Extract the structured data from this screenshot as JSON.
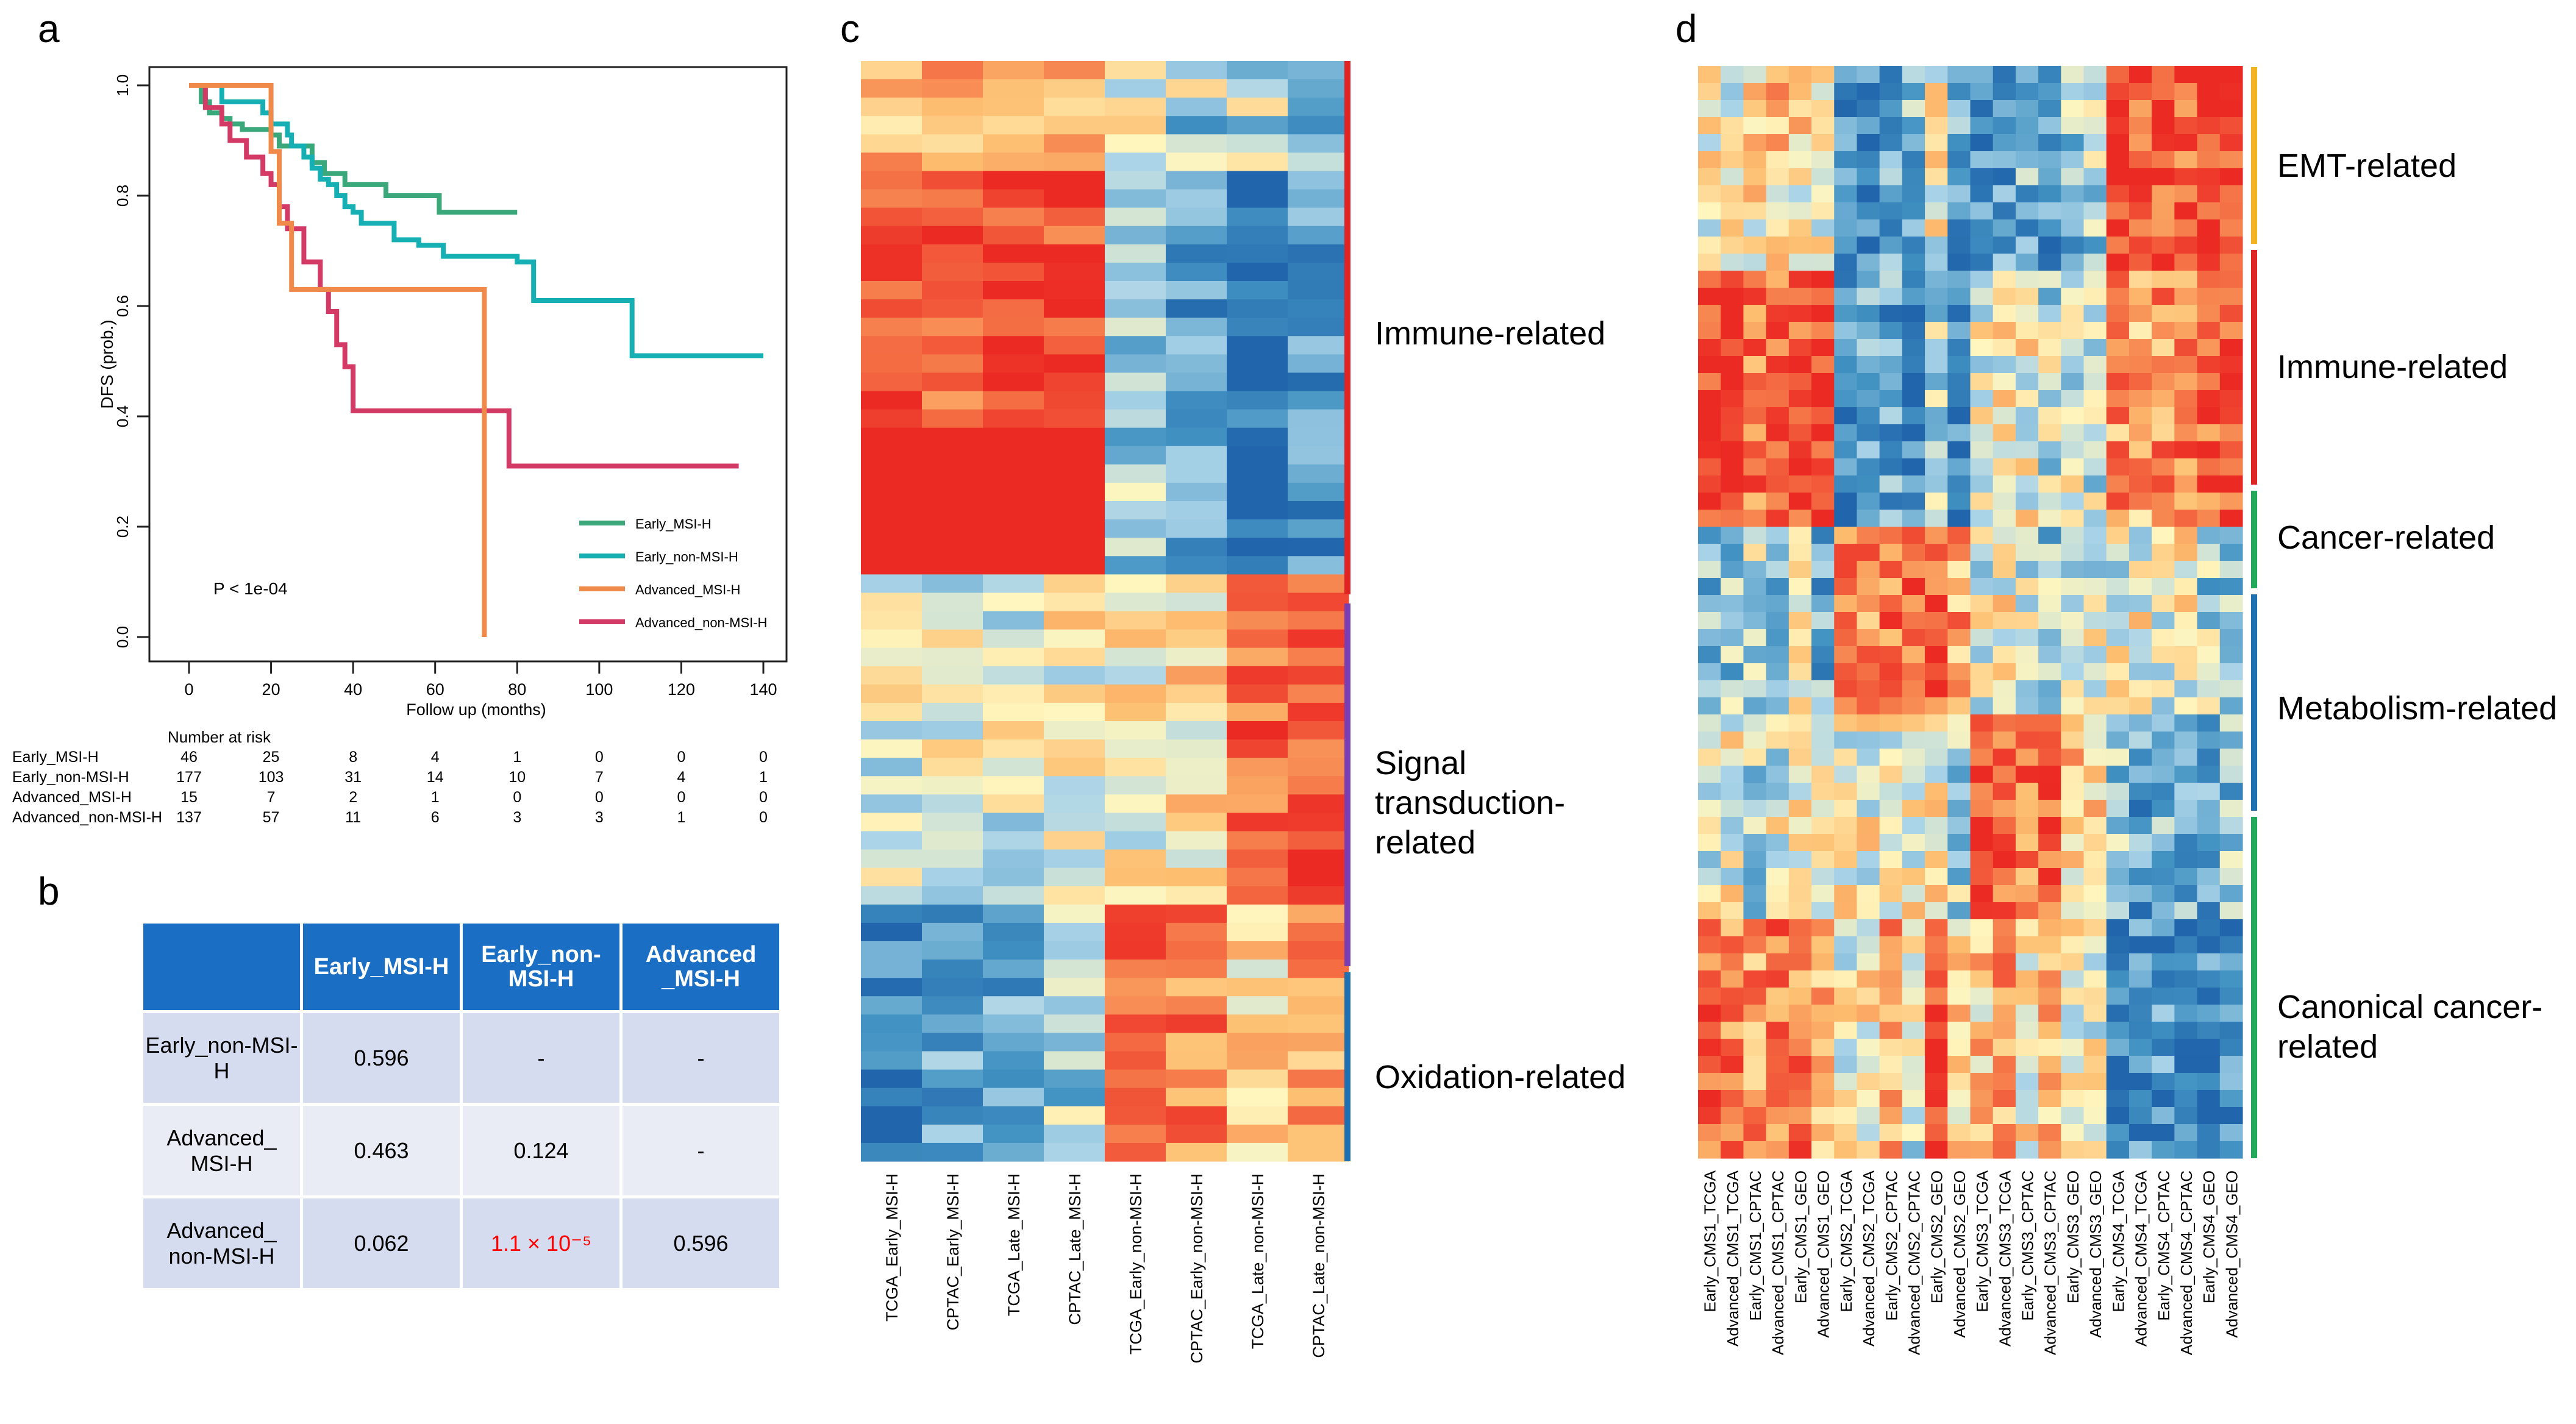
{
  "panels": {
    "a": "a",
    "b": "b",
    "c": "c",
    "d": "d"
  },
  "km": {
    "ylabel": "DFS (prob.)",
    "xlabel": "Follow up (months)",
    "yticks": [
      "0.0",
      "0.2",
      "0.4",
      "0.6",
      "0.8",
      "1.0"
    ],
    "xticks": [
      "0",
      "20",
      "40",
      "60",
      "80",
      "100",
      "120",
      "140"
    ],
    "pvalue": "P < 1e-04",
    "colors": {
      "early_msi": "#3aa87a",
      "early_non": "#16b0b4",
      "adv_msi": "#f08a4b",
      "adv_non": "#d43a66"
    },
    "legend": [
      "Early_MSI-H",
      "Early_non-MSI-H",
      "Advanced_MSI-H",
      "Advanced_non-MSI-H"
    ],
    "risk_title": "Number at risk",
    "risk_rows": [
      {
        "label": "Early_MSI-H",
        "values": [
          "46",
          "25",
          "8",
          "4",
          "1",
          "0",
          "0",
          "0"
        ]
      },
      {
        "label": "Early_non-MSI-H",
        "values": [
          "177",
          "103",
          "31",
          "14",
          "10",
          "7",
          "4",
          "1"
        ]
      },
      {
        "label": "Advanced_MSI-H",
        "values": [
          "15",
          "7",
          "2",
          "1",
          "0",
          "0",
          "0",
          "0"
        ]
      },
      {
        "label": "Advanced_non-MSI-H",
        "values": [
          "137",
          "57",
          "11",
          "6",
          "3",
          "3",
          "1",
          "0"
        ]
      }
    ]
  },
  "chart_data": [
    {
      "type": "line",
      "title": "",
      "xlabel": "Follow up (months)",
      "ylabel": "DFS (prob.)",
      "xlim": [
        0,
        140
      ],
      "ylim": [
        0,
        1
      ],
      "series": [
        {
          "name": "Early_MSI-H",
          "x": [
            0,
            3,
            5,
            8,
            10,
            13,
            20,
            22,
            30,
            33,
            38,
            48,
            60,
            61,
            80
          ],
          "y": [
            1.0,
            0.97,
            0.95,
            0.94,
            0.93,
            0.92,
            0.91,
            0.89,
            0.86,
            0.84,
            0.82,
            0.8,
            0.8,
            0.77,
            0.77
          ]
        },
        {
          "name": "Early_non-MSI-H",
          "x": [
            0,
            8,
            18,
            20,
            24,
            25,
            28,
            30,
            32,
            34,
            36,
            38,
            40,
            42,
            50,
            56,
            62,
            80,
            84,
            108,
            140
          ],
          "y": [
            1.0,
            0.97,
            0.95,
            0.93,
            0.91,
            0.89,
            0.87,
            0.85,
            0.83,
            0.82,
            0.8,
            0.78,
            0.77,
            0.75,
            0.72,
            0.71,
            0.69,
            0.68,
            0.61,
            0.51,
            0.51
          ]
        },
        {
          "name": "Advanced_MSI-H",
          "x": [
            0,
            20,
            22,
            25,
            72,
            72
          ],
          "y": [
            1.0,
            0.88,
            0.75,
            0.63,
            0.63,
            0.0
          ]
        },
        {
          "name": "Advanced_non-MSI-H",
          "x": [
            0,
            4,
            8,
            10,
            14,
            18,
            20,
            22,
            24,
            28,
            32,
            34,
            36,
            38,
            40,
            56,
            78,
            134
          ],
          "y": [
            1.0,
            0.96,
            0.93,
            0.9,
            0.87,
            0.84,
            0.82,
            0.78,
            0.74,
            0.68,
            0.63,
            0.59,
            0.53,
            0.49,
            0.41,
            0.41,
            0.31,
            0.31
          ]
        }
      ]
    },
    {
      "type": "table",
      "columns": [
        "",
        "Early_MSI-H",
        "Early_non-MSI-H",
        "Advanced_MSI-H"
      ],
      "rows": [
        [
          "Early_non-MSI-H",
          "0.596",
          "-",
          "-"
        ],
        [
          "Advanced_MSI-H",
          "0.463",
          "0.124",
          "-"
        ],
        [
          "Advanced_non-MSI-H",
          "0.062",
          "1.1 × 10⁻⁵",
          "0.596"
        ]
      ]
    },
    {
      "type": "heatmap",
      "columns": [
        "TCGA_Early_MSI-H",
        "CPTAC_Early_MSI-H",
        "TCGA_Late_MSI-H",
        "CPTAC_Late_MSI-H",
        "TCGA_Early_non-MSI-H",
        "CPTAC_Early_non-MSI-H",
        "TCGA_Late_non-MSI-H",
        "CPTAC_Late_non-MSI-H"
      ],
      "groups": [
        "Immune-related",
        "Signal transduction-related",
        "Oxidation-related"
      ]
    },
    {
      "type": "heatmap",
      "columns": [
        "Early_CMS1_TCGA",
        "Advanced_CMS1_TCGA",
        "Early_CMS1_CPTAC",
        "Advanced_CMS1_CPTAC",
        "Early_CMS1_GEO",
        "Advanced_CMS1_GEO",
        "Early_CMS2_TCGA",
        "Advanced_CMS2_TCGA",
        "Early_CMS2_CPTAC",
        "Advanced_CMS2_CPTAC",
        "Early_CMS2_GEO",
        "Advanced_CMS2_GEO",
        "Early_CMS3_TCGA",
        "Advanced_CMS3_TCGA",
        "Early_CMS3_CPTAC",
        "Advanced_CMS3_CPTAC",
        "Early_CMS3_GEO",
        "Advanced_CMS3_GEO",
        "Early_CMS4_TCGA",
        "Advanced_CMS4_TCGA",
        "Early_CMS4_CPTAC",
        "Advanced_CMS4_CPTAC",
        "Early_CMS4_GEO",
        "Advanced_CMS4_GEO"
      ],
      "groups": [
        "EMT-related",
        "Immune-related",
        "Cancer-related",
        "Metabolism-related",
        "Canonical cancer-related"
      ]
    }
  ],
  "table_b": {
    "headers": [
      "",
      "Early_MSI-H",
      "Early_non-MSI-H",
      "Advanced _MSI-H"
    ],
    "rows": [
      {
        "label": "Early_non-MSI-H",
        "cells": [
          "0.596",
          "-",
          "-"
        ]
      },
      {
        "label": "Advanced_ MSI-H",
        "cells": [
          "0.463",
          "0.124",
          "-"
        ]
      },
      {
        "label": "Advanced_ non-MSI-H",
        "cells": [
          "0.062",
          "1.1 × 10⁻⁵",
          "0.596"
        ]
      }
    ]
  },
  "heatmap_c": {
    "labels": [
      "Immune-related",
      "Signal transduction-related",
      "Oxidation-related"
    ],
    "label_lines": [
      [
        "Immune-related"
      ],
      [
        "Signal",
        "transduction-",
        "related"
      ],
      [
        "Oxidation-related"
      ]
    ],
    "bar_colors": [
      "#e02424",
      "#7b3fb5",
      "#1f6fb3"
    ]
  },
  "heatmap_d": {
    "labels": [
      "EMT-related",
      "Immune-related",
      "Cancer-related",
      "Metabolism-related",
      "Canonical cancer-related"
    ],
    "label_lines": [
      [
        "EMT-related"
      ],
      [
        "Immune-related"
      ],
      [
        "Cancer-related"
      ],
      [
        "Metabolism-related"
      ],
      [
        "Canonical cancer-",
        "related"
      ]
    ],
    "bar_colors": [
      "#f5b324",
      "#e02424",
      "#22a85a",
      "#1f6fb3",
      "#22a85a"
    ]
  }
}
